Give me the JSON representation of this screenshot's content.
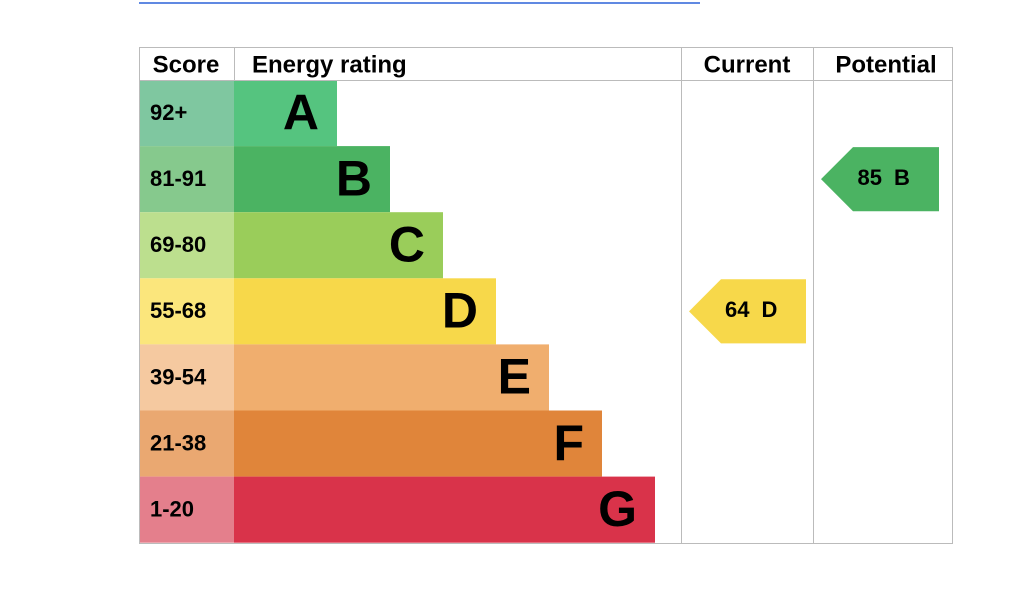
{
  "table": {
    "headers": [
      "Score",
      "Energy rating",
      "Current",
      "Potential"
    ],
    "rows": [
      {
        "score": "92+",
        "rating": "A",
        "color": "#55c47f",
        "cell_color": "#7fc7a0"
      },
      {
        "score": "81-91",
        "rating": "B",
        "color": "#4bb362",
        "cell_color": "#86c98d"
      },
      {
        "score": "69-80",
        "rating": "C",
        "color": "#9acd5a",
        "cell_color": "#bcdf8e"
      },
      {
        "score": "55-68",
        "rating": "D",
        "color": "#f7d84a",
        "cell_color": "#fbe67c"
      },
      {
        "score": "39-54",
        "rating": "E",
        "color": "#f0ae6e",
        "cell_color": "#f5c9a0"
      },
      {
        "score": "21-38",
        "rating": "F",
        "color": "#e0853a",
        "cell_color": "#eaa871"
      },
      {
        "score": "1-20",
        "rating": "G",
        "color": "#d9334a",
        "cell_color": "#e47f8c"
      }
    ],
    "current": {
      "score": 64,
      "rating": "D"
    },
    "potential": {
      "score": 85,
      "rating": "B"
    }
  }
}
